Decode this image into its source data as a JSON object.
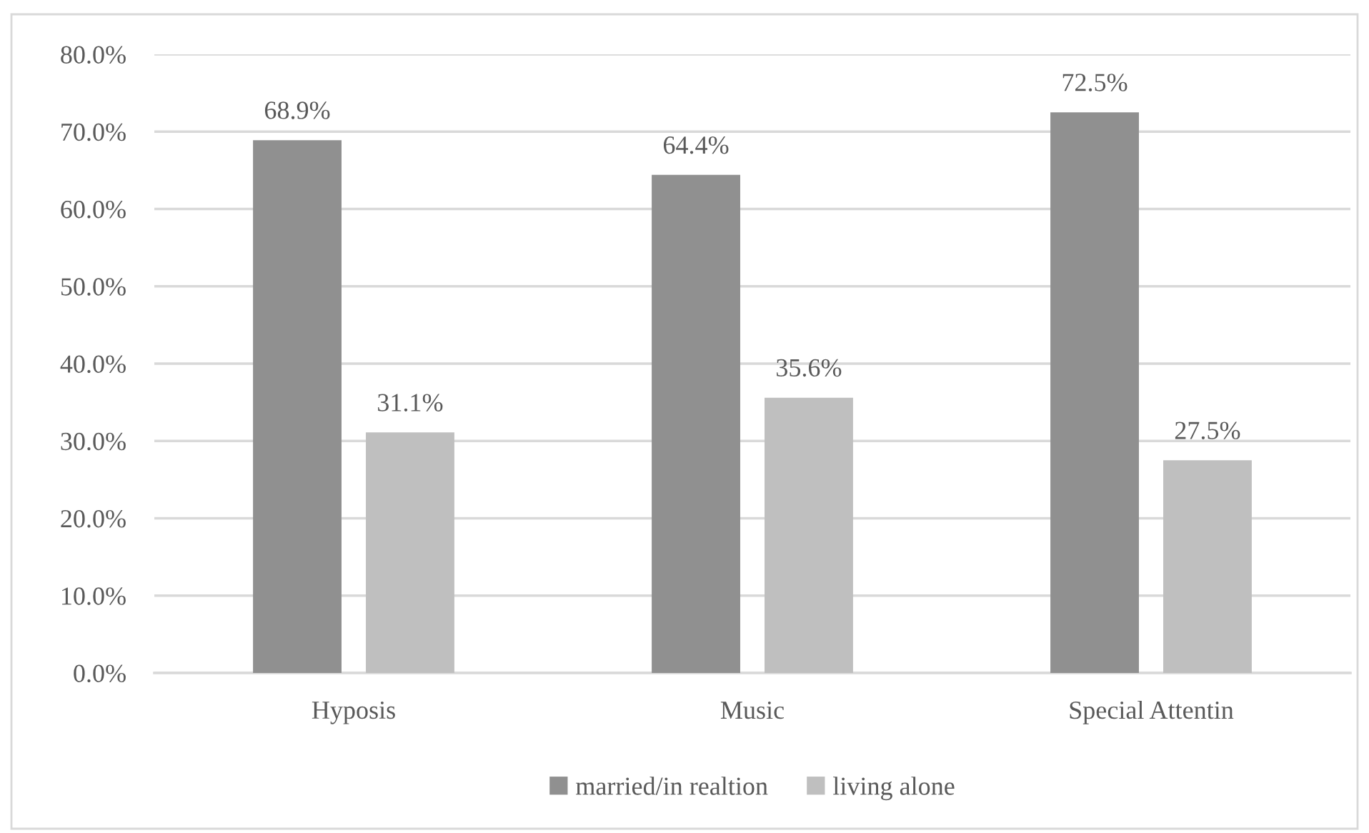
{
  "chart_data": {
    "type": "bar",
    "categories": [
      "Hyposis",
      "Music",
      "Special Attentin"
    ],
    "series": [
      {
        "name": "married/in realtion",
        "color": "#909090",
        "values": [
          68.9,
          64.4,
          72.5
        ],
        "value_labels": [
          "68.9%",
          "64.4%",
          "72.5%"
        ]
      },
      {
        "name": "living alone",
        "color": "#bfbfbf",
        "values": [
          31.1,
          35.6,
          27.5
        ],
        "value_labels": [
          "31.1%",
          "35.6%",
          "27.5%"
        ]
      }
    ],
    "ylim": [
      0,
      80
    ],
    "yticks": [
      {
        "value": 0,
        "label": "0.0%"
      },
      {
        "value": 10,
        "label": "10.0%"
      },
      {
        "value": 20,
        "label": "20.0%"
      },
      {
        "value": 30,
        "label": "30.0%"
      },
      {
        "value": 40,
        "label": "40.0%"
      },
      {
        "value": 50,
        "label": "50.0%"
      },
      {
        "value": 60,
        "label": "60.0%"
      },
      {
        "value": 70,
        "label": "70.0%"
      },
      {
        "value": 80,
        "label": "80.0%"
      }
    ],
    "grid": "y",
    "legend": "bottom"
  }
}
